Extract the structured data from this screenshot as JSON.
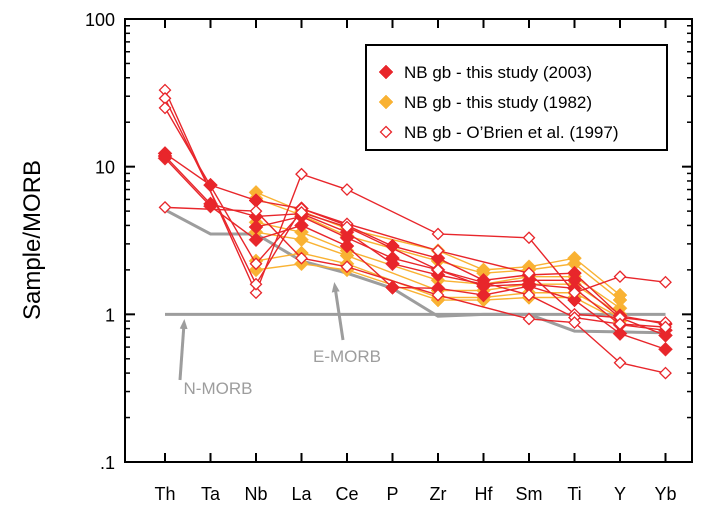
{
  "chart_data": {
    "type": "line",
    "ylabel": "Sample/MORB",
    "xlabel": "",
    "y_scale": "log",
    "ylim": [
      0.1,
      100
    ],
    "yticks": [
      {
        "value": 0.1,
        "label": ".1"
      },
      {
        "value": 1,
        "label": "1"
      },
      {
        "value": 10,
        "label": "10"
      },
      {
        "value": 100,
        "label": "100"
      }
    ],
    "categories": [
      "Th",
      "Ta",
      "Nb",
      "La",
      "Ce",
      "P",
      "Zr",
      "Hf",
      "Sm",
      "Ti",
      "Y",
      "Yb"
    ],
    "legend": {
      "placement": "top-right",
      "entries": [
        {
          "label": "NB gb - this study (2003)",
          "marker": "filled-diamond",
          "color": "#e8262b"
        },
        {
          "label": "NB gb - this study (1982)",
          "marker": "filled-diamond",
          "color": "#f9b233"
        },
        {
          "label": "NB gb - O’Brien et al. (1997)",
          "marker": "open-diamond",
          "color": "#e8262b"
        }
      ]
    },
    "reference_lines": [
      {
        "name": "N-MORB",
        "label": "N-MORB",
        "color": "#9d9d9d",
        "values": [
          1,
          1,
          1,
          1,
          1,
          1,
          1,
          1,
          1,
          1,
          1,
          1
        ]
      },
      {
        "name": "E-MORB",
        "label": "E-MORB",
        "color": "#9d9d9d",
        "values": [
          5.1,
          3.5,
          3.5,
          2.3,
          1.9,
          1.5,
          0.97,
          1.0,
          1.0,
          0.77,
          0.76,
          0.75
        ]
      }
    ],
    "series_groups": [
      {
        "group": "NB gb - this study (2003)",
        "marker": "filled-diamond",
        "color": "#e8262b",
        "series": [
          {
            "values": [
              12.3,
              7.5,
              5.9,
              5.2,
              4.0,
              2.9,
              2.4,
              1.7,
              1.85,
              1.9,
              0.98,
              0.86
            ]
          },
          {
            "values": [
              11.8,
              5.6,
              4.6,
              4.8,
              3.6,
              2.2,
              1.85,
              1.6,
              1.7,
              1.7,
              0.95,
              0.72
            ]
          },
          {
            "values": [
              11.4,
              5.4,
              3.2,
              4.0,
              2.9,
              1.52,
              1.5,
              1.35,
              1.55,
              1.25,
              0.74,
              0.58
            ]
          },
          {
            "values": [
              null,
              null,
              3.9,
              4.6,
              3.3,
              2.4,
              2.0,
              1.55,
              1.6,
              1.5,
              0.85,
              0.78
            ]
          }
        ]
      },
      {
        "group": "NB gb - this study (1982)",
        "marker": "filled-diamond",
        "color": "#f9b233",
        "series": [
          {
            "values": [
              null,
              null,
              6.7,
              5.0,
              3.8,
              null,
              2.7,
              2.0,
              2.1,
              2.4,
              1.35,
              null
            ]
          },
          {
            "values": [
              null,
              null,
              6.1,
              4.7,
              3.4,
              null,
              2.3,
              1.9,
              2.0,
              2.2,
              1.25,
              null
            ]
          },
          {
            "values": [
              null,
              null,
              4.2,
              3.6,
              2.7,
              null,
              1.7,
              1.6,
              1.8,
              1.8,
              1.1,
              null
            ]
          },
          {
            "values": [
              null,
              null,
              3.6,
              3.2,
              2.5,
              null,
              1.45,
              1.45,
              1.6,
              1.6,
              1.0,
              null
            ]
          },
          {
            "values": [
              null,
              null,
              2.3,
              2.6,
              2.2,
              null,
              1.3,
              1.3,
              1.4,
              1.4,
              0.95,
              null
            ]
          },
          {
            "values": [
              null,
              null,
              2.0,
              2.2,
              2.0,
              null,
              1.25,
              1.25,
              1.3,
              1.3,
              0.9,
              null
            ]
          }
        ]
      },
      {
        "group": "NB gb - O’Brien et al. (1997)",
        "marker": "open-diamond",
        "color": "#e8262b",
        "series": [
          {
            "values": [
              33,
              null,
              1.4,
              8.9,
              7.0,
              null,
              3.5,
              null,
              3.3,
              1.4,
              1.8,
              1.65
            ]
          },
          {
            "values": [
              29,
              null,
              1.6,
              5.2,
              4.1,
              null,
              2.7,
              null,
              1.9,
              1.0,
              0.95,
              0.88
            ]
          },
          {
            "values": [
              25,
              null,
              2.2,
              4.9,
              3.9,
              null,
              2.0,
              null,
              1.35,
              0.95,
              0.86,
              0.82
            ]
          },
          {
            "values": [
              5.3,
              null,
              5.0,
              2.4,
              2.1,
              null,
              1.35,
              null,
              0.93,
              0.88,
              0.47,
              0.4
            ]
          }
        ]
      }
    ],
    "annotations": [
      {
        "text": "N-MORB",
        "color": "#9d9d9d"
      },
      {
        "text": "E-MORB",
        "color": "#9d9d9d"
      }
    ]
  }
}
